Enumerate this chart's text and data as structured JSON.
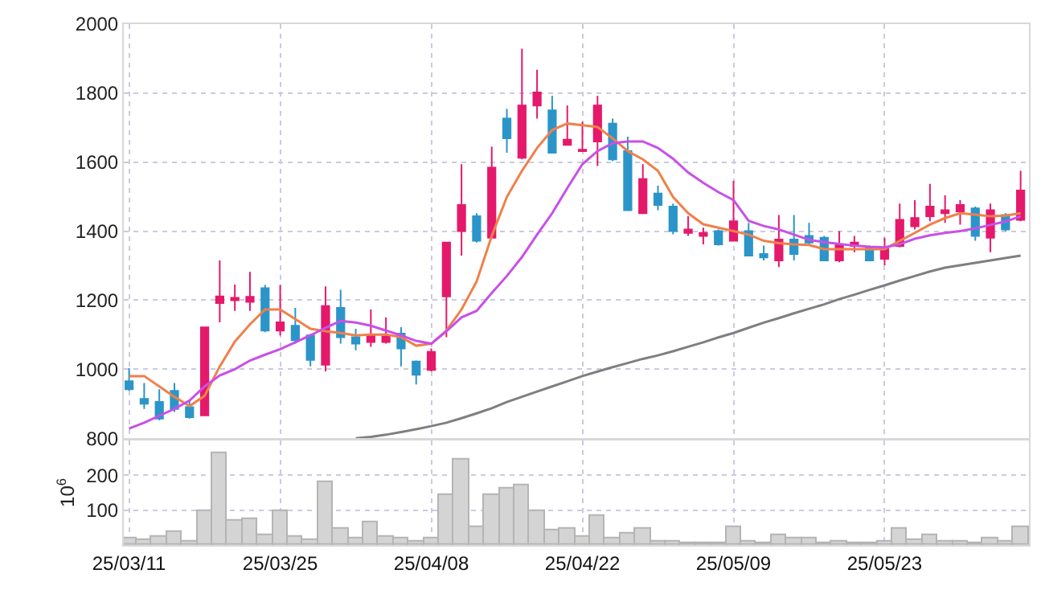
{
  "chart_data": [
    {
      "type": "candlestick",
      "tick_labels": "y",
      "grid": true,
      "categories": [
        "25/03/11",
        null,
        null,
        null,
        null,
        null,
        null,
        null,
        null,
        null,
        "25/03/25",
        null,
        null,
        null,
        null,
        null,
        null,
        null,
        null,
        null,
        "25/04/08",
        null,
        null,
        null,
        null,
        null,
        null,
        null,
        null,
        null,
        "25/04/22",
        null,
        null,
        null,
        null,
        null,
        null,
        null,
        null,
        null,
        "25/05/09",
        null,
        null,
        null,
        null,
        null,
        null,
        null,
        null,
        null,
        "25/05/23",
        null,
        null,
        null,
        null,
        null,
        null,
        null,
        null,
        null
      ],
      "ohlc": [
        [
          965,
          1003,
          937,
          942
        ],
        [
          914,
          960,
          885,
          900
        ],
        [
          905,
          942,
          852,
          857
        ],
        [
          937,
          960,
          876,
          885
        ],
        [
          890,
          909,
          857,
          861
        ],
        [
          866,
          1121,
          866,
          1121
        ],
        [
          1192,
          1315,
          1136,
          1211
        ],
        [
          1200,
          1245,
          1169,
          1207
        ],
        [
          1195,
          1282,
          1169,
          1210
        ],
        [
          1235,
          1244,
          1107,
          1112
        ],
        [
          1112,
          1244,
          1098,
          1136
        ],
        [
          1126,
          1178,
          1074,
          1084
        ],
        [
          1098,
          1102,
          1008,
          1027
        ],
        [
          1013,
          1240,
          994,
          1183
        ],
        [
          1178,
          1230,
          1074,
          1093
        ],
        [
          1093,
          1117,
          1055,
          1074
        ],
        [
          1079,
          1173,
          1065,
          1098
        ],
        [
          1079,
          1150,
          1074,
          1095
        ],
        [
          1103,
          1122,
          1008,
          1060
        ],
        [
          1022,
          1025,
          956,
          984
        ],
        [
          998,
          1060,
          994,
          1050
        ],
        [
          1211,
          1367,
          1093,
          1367
        ],
        [
          1400,
          1594,
          1329,
          1476
        ],
        [
          1443,
          1452,
          1367,
          1372
        ],
        [
          1381,
          1645,
          1381,
          1584
        ],
        [
          1726,
          1754,
          1627,
          1669
        ],
        [
          1613,
          1929,
          1608,
          1764
        ],
        [
          1764,
          1868,
          1726,
          1802
        ],
        [
          1750,
          1792,
          1627,
          1627
        ],
        [
          1650,
          1764,
          1650,
          1665
        ],
        [
          1632,
          1717,
          1632,
          1636
        ],
        [
          1660,
          1792,
          1589,
          1764
        ],
        [
          1712,
          1726,
          1603,
          1608
        ],
        [
          1632,
          1674,
          1461,
          1461
        ],
        [
          1452,
          1594,
          1452,
          1551
        ],
        [
          1509,
          1532,
          1461,
          1476
        ],
        [
          1471,
          1480,
          1391,
          1400
        ],
        [
          1395,
          1443,
          1386,
          1405
        ],
        [
          1386,
          1410,
          1362,
          1395
        ],
        [
          1400,
          1405,
          1358,
          1362
        ],
        [
          1372,
          1546,
          1372,
          1429
        ],
        [
          1400,
          1424,
          1329,
          1329
        ],
        [
          1334,
          1358,
          1315,
          1324
        ],
        [
          1315,
          1447,
          1296,
          1376
        ],
        [
          1376,
          1447,
          1315,
          1334
        ],
        [
          1386,
          1424,
          1362,
          1367
        ],
        [
          1381,
          1386,
          1315,
          1315
        ],
        [
          1315,
          1400,
          1310,
          1362
        ],
        [
          1357,
          1386,
          1339,
          1367
        ],
        [
          1353,
          1358,
          1315,
          1315
        ],
        [
          1320,
          1381,
          1301,
          1353
        ],
        [
          1357,
          1480,
          1353,
          1433
        ],
        [
          1414,
          1490,
          1405,
          1438
        ],
        [
          1443,
          1537,
          1429,
          1471
        ],
        [
          1452,
          1504,
          1424,
          1461
        ],
        [
          1457,
          1490,
          1419,
          1476
        ],
        [
          1466,
          1471,
          1372,
          1386
        ],
        [
          1381,
          1480,
          1339,
          1461
        ],
        [
          1447,
          1452,
          1400,
          1405
        ],
        [
          1433,
          1575,
          1429,
          1518
        ]
      ],
      "colors": [
        "#2b95c9",
        "#2b95c9",
        "#2b95c9",
        "#2b95c9",
        "#2b95c9",
        "#e5196b",
        "#e5196b",
        "#e5196b",
        "#e5196b",
        "#2b95c9",
        "#e5196b",
        "#2b95c9",
        "#2b95c9",
        "#e5196b",
        "#2b95c9",
        "#2b95c9",
        "#e5196b",
        "#e5196b",
        "#2b95c9",
        "#2b95c9",
        "#e5196b",
        "#e5196b",
        "#e5196b",
        "#2b95c9",
        "#e5196b",
        "#2b95c9",
        "#e5196b",
        "#e5196b",
        "#2b95c9",
        "#e5196b",
        "#e5196b",
        "#e5196b",
        "#2b95c9",
        "#2b95c9",
        "#e5196b",
        "#2b95c9",
        "#2b95c9",
        "#e5196b",
        "#e5196b",
        "#2b95c9",
        "#e5196b",
        "#2b95c9",
        "#2b95c9",
        "#e5196b",
        "#2b95c9",
        "#2b95c9",
        "#2b95c9",
        "#e5196b",
        "#e5196b",
        "#2b95c9",
        "#e5196b",
        "#e5196b",
        "#e5196b",
        "#e5196b",
        "#e5196b",
        "#e5196b",
        "#2b95c9",
        "#e5196b",
        "#2b95c9",
        "#e5196b"
      ],
      "series": [
        {
          "type": "line",
          "color": "#f0804a",
          "values": [
            980,
            980,
            950,
            920,
            893,
            923,
            1008,
            1080,
            1130,
            1173,
            1173,
            1145,
            1117,
            1110,
            1105,
            1098,
            1100,
            1100,
            1093,
            1068,
            1074,
            1112,
            1173,
            1254,
            1386,
            1499,
            1575,
            1641,
            1693,
            1712,
            1707,
            1702,
            1669,
            1632,
            1608,
            1575,
            1499,
            1452,
            1420,
            1410,
            1400,
            1390,
            1372,
            1365,
            1362,
            1360,
            1348,
            1348,
            1348,
            1348,
            1348,
            1372,
            1395,
            1419,
            1438,
            1452,
            1448,
            1443,
            1445,
            1452
          ]
        },
        {
          "type": "line",
          "color": "#c850e8",
          "values": [
            828,
            845,
            865,
            885,
            909,
            950,
            982,
            1000,
            1025,
            1042,
            1058,
            1078,
            1098,
            1120,
            1140,
            1135,
            1126,
            1112,
            1098,
            1082,
            1074,
            1110,
            1150,
            1169,
            1221,
            1270,
            1325,
            1390,
            1452,
            1525,
            1594,
            1632,
            1655,
            1660,
            1660,
            1641,
            1610,
            1570,
            1540,
            1513,
            1490,
            1430,
            1415,
            1405,
            1390,
            1375,
            1368,
            1363,
            1358,
            1355,
            1353,
            1362,
            1378,
            1388,
            1395,
            1400,
            1408,
            1418,
            1428,
            1443
          ]
        },
        {
          "type": "line",
          "color": "#7f7f7f",
          "values": [
            null,
            null,
            null,
            null,
            null,
            null,
            null,
            null,
            null,
            null,
            null,
            null,
            null,
            null,
            null,
            800,
            804,
            810,
            818,
            826,
            835,
            845,
            858,
            872,
            887,
            905,
            920,
            935,
            950,
            965,
            980,
            993,
            1006,
            1018,
            1030,
            1040,
            1052,
            1065,
            1078,
            1092,
            1105,
            1120,
            1135,
            1148,
            1162,
            1175,
            1188,
            1203,
            1216,
            1230,
            1243,
            1257,
            1270,
            1283,
            1294,
            1301,
            1308,
            1315,
            1322,
            1329
          ]
        }
      ],
      "ylim": [
        800,
        2000
      ],
      "yticks": [
        800,
        1000,
        1200,
        1400,
        1600,
        1800,
        2000
      ]
    },
    {
      "type": "bar",
      "grid": true,
      "ylabel": "10$^{6}$",
      "color": "#d4d4d4",
      "categories": [
        "25/03/11",
        null,
        null,
        null,
        null,
        null,
        null,
        null,
        null,
        null,
        "25/03/25",
        null,
        null,
        null,
        null,
        null,
        null,
        null,
        null,
        null,
        "25/04/08",
        null,
        null,
        null,
        null,
        null,
        null,
        null,
        null,
        null,
        "25/04/22",
        null,
        null,
        null,
        null,
        null,
        null,
        null,
        null,
        null,
        "25/05/09",
        null,
        null,
        null,
        null,
        null,
        null,
        null,
        null,
        null,
        "25/05/23",
        null,
        null,
        null,
        null,
        null,
        null,
        null,
        null,
        null
      ],
      "values": [
        21,
        16,
        25,
        39,
        9,
        99,
        263,
        70,
        75,
        30,
        99,
        25,
        16,
        182,
        48,
        21,
        66,
        25,
        21,
        9,
        21,
        142,
        245,
        52,
        142,
        164,
        172,
        99,
        40,
        45,
        22,
        85,
        21,
        31,
        45,
        9,
        9,
        6,
        6,
        6,
        52,
        9,
        6,
        30,
        18,
        18,
        6,
        12,
        6,
        6,
        9,
        45,
        13,
        30,
        10,
        9,
        6,
        18,
        9,
        49
      ],
      "ylim": [
        0,
        300
      ],
      "yticks": [
        100,
        200
      ]
    }
  ]
}
